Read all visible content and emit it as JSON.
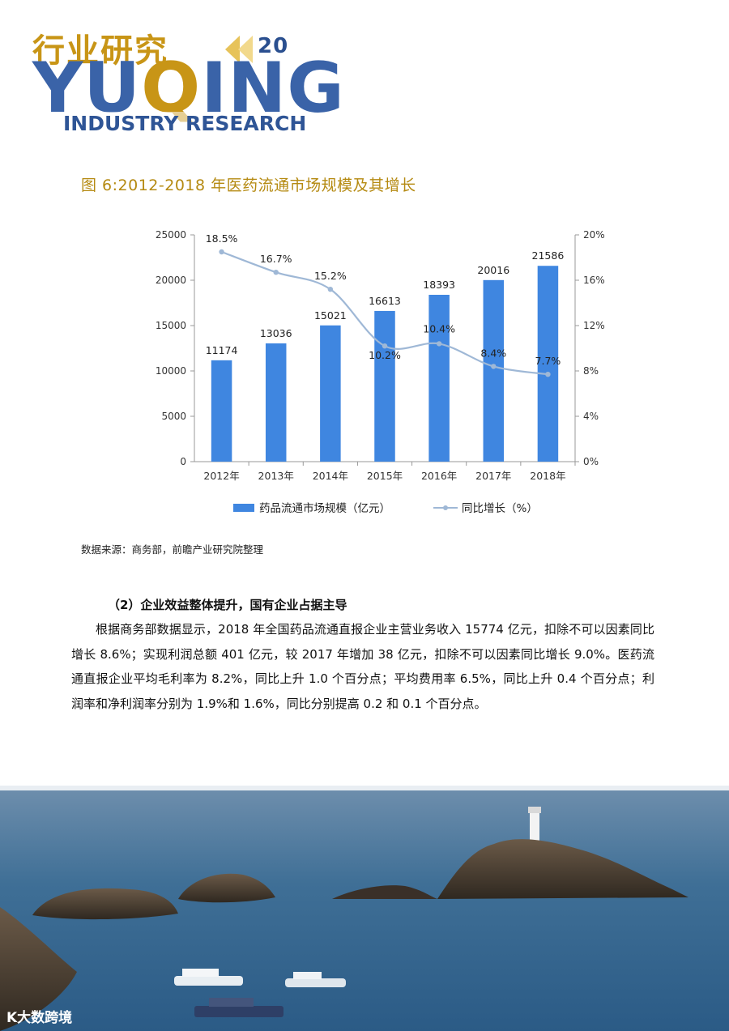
{
  "header": {
    "title_cn": "行业研究",
    "page_number": "20",
    "brand_en_part1": "YU",
    "brand_en_part2": "Q",
    "brand_en_part3": "ING",
    "subtitle_en": "INDUSTRY RESEARCH"
  },
  "figure": {
    "title": "图 6:2012-2018 年医药流通市场规模及其增长",
    "source": "数据来源：商务部，前瞻产业研究院整理"
  },
  "chart_data": {
    "type": "bar",
    "categories": [
      "2012年",
      "2013年",
      "2014年",
      "2015年",
      "2016年",
      "2017年",
      "2018年"
    ],
    "series": [
      {
        "name": "药品流通市场规模（亿元）",
        "type": "bar",
        "axis": "left",
        "values": [
          11174,
          13036,
          15021,
          16613,
          18393,
          20016,
          21586
        ],
        "labels": [
          "11174",
          "13036",
          "15021",
          "16613",
          "18393",
          "20016",
          "21586"
        ],
        "color": "#3f86e0"
      },
      {
        "name": "同比增长（%）",
        "type": "line",
        "axis": "right",
        "values": [
          18.5,
          16.7,
          15.2,
          10.2,
          10.4,
          8.4,
          7.7
        ],
        "labels": [
          "18.5%",
          "16.7%",
          "15.2%",
          "10.2%",
          "10.4%",
          "8.4%",
          "7.7%"
        ],
        "color": "#9fb8d6"
      }
    ],
    "y_left": {
      "min": 0,
      "max": 25000,
      "ticks": [
        "0",
        "5000",
        "10000",
        "15000",
        "20000",
        "25000"
      ]
    },
    "y_right": {
      "min": 0,
      "max": 20,
      "ticks": [
        "0%",
        "4%",
        "8%",
        "12%",
        "16%",
        "20%"
      ]
    },
    "legend_position": "bottom"
  },
  "section": {
    "heading": "（2）企业效益整体提升，国有企业占据主导",
    "paragraph": "根据商务部数据显示，2018 年全国药品流通直报企业主营业务收入 15774 亿元，扣除不可以因素同比增长 8.6%；实现利润总额 401 亿元，较 2017 年增加 38 亿元，扣除不可以因素同比增长 9.0%。医药流通直报企业平均毛利率为 8.2%，同比上升 1.0 个百分点；平均费用率 6.5%，同比上升 0.4 个百分点；利润率和净利润率分别为 1.9%和 1.6%，同比分别提高 0.2 和 0.1 个百分点。"
  },
  "watermark": "K大数跨境"
}
